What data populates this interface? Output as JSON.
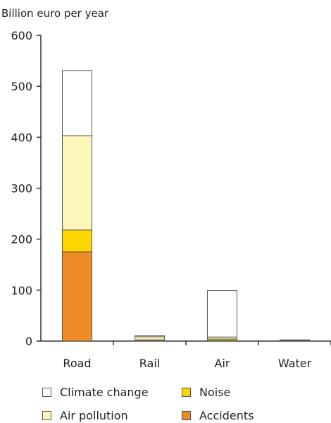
{
  "chart_data": {
    "type": "bar",
    "stacked": true,
    "ylabel": "Billion euro per year",
    "categories": [
      "Road",
      "Rail",
      "Air",
      "Water"
    ],
    "ylim": [
      0,
      600
    ],
    "yticks": [
      0,
      100,
      200,
      300,
      400,
      500,
      600
    ],
    "grid": false,
    "legend_position": "bottom",
    "series": [
      {
        "name": "Accidents",
        "color": "#f08a24",
        "values": [
          175,
          0.5,
          1,
          0.2
        ]
      },
      {
        "name": "Noise",
        "color": "#ffd700",
        "values": [
          43,
          2,
          3,
          0.2
        ]
      },
      {
        "name": "Air pollution",
        "color": "#fff6b9",
        "values": [
          185,
          6,
          4,
          1
        ]
      },
      {
        "name": "Climate change",
        "color": "#ffffff",
        "values": [
          128,
          2,
          91,
          1
        ]
      }
    ],
    "legend_order": [
      "Climate change",
      "Noise",
      "Air pollution",
      "Accidents"
    ]
  }
}
